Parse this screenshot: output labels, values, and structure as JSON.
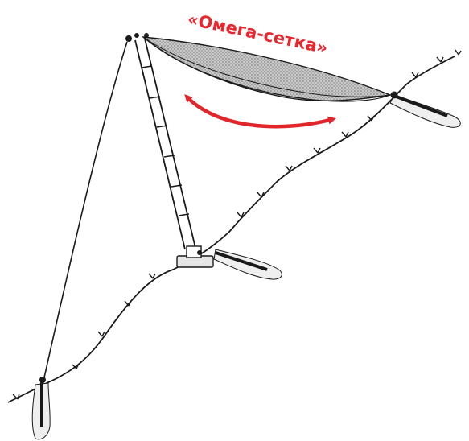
{
  "diagram": {
    "title": "«Омега-сетка»",
    "colors": {
      "title": "#e8262d",
      "arrow": "#e0252b",
      "line": "#1a1a1a",
      "net_fill": "#b9b9b9",
      "anchor_fill": "#efefef"
    },
    "elements": {
      "net": "omega-net",
      "mast": "ladder-mast",
      "rope": "terrain-line",
      "guy": "guy-rope",
      "arrow": "double-headed-arrow"
    }
  }
}
